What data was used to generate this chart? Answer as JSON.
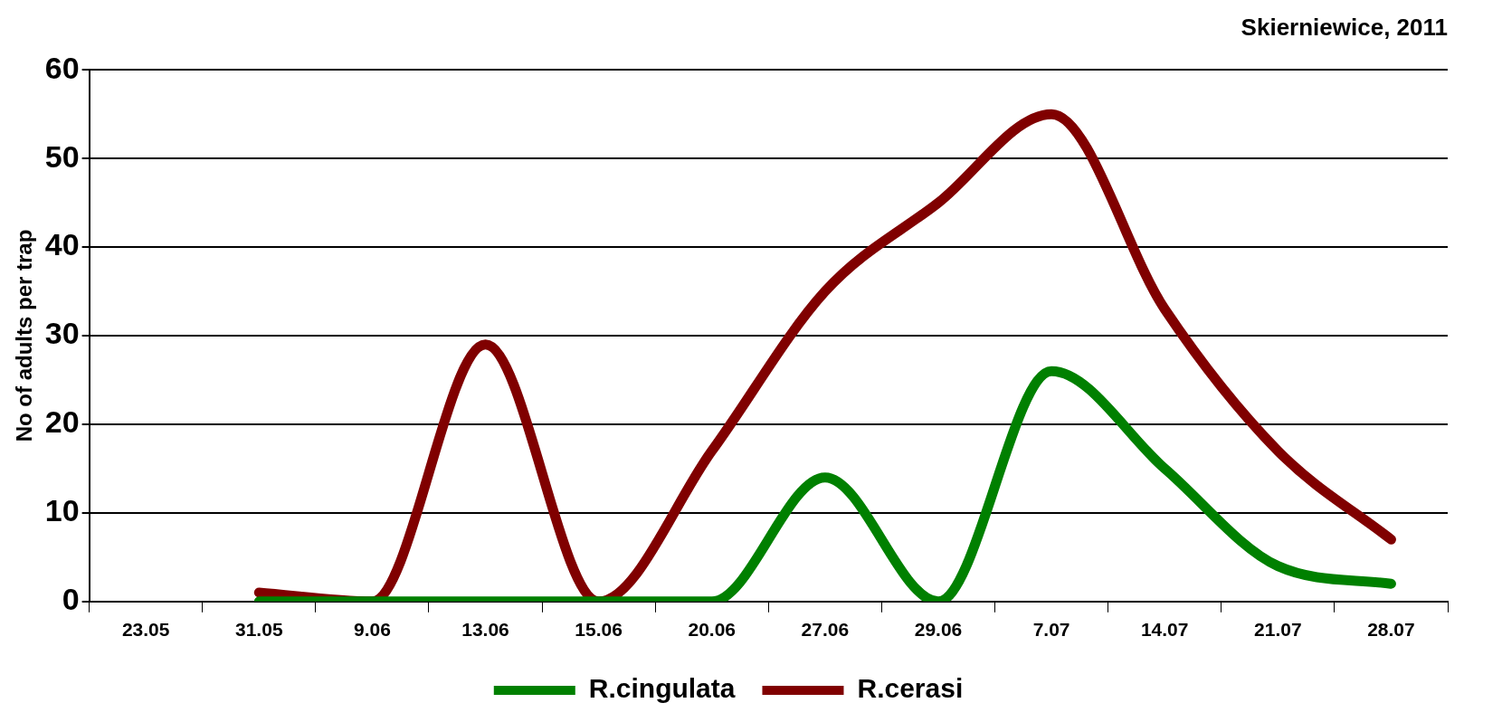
{
  "chart_data": {
    "type": "line",
    "title": "Skierniewice, 2011",
    "ylabel": "No of adults per trap",
    "categories": [
      "23.05",
      "31.05",
      "9.06",
      "13.06",
      "15.06",
      "20.06",
      "27.06",
      "29.06",
      "7.07",
      "14.07",
      "21.07",
      "28.07"
    ],
    "series": [
      {
        "name": "R.cingulata",
        "color": "#008000",
        "values": [
          null,
          0,
          0,
          0,
          0,
          0,
          14,
          0,
          26,
          15,
          4,
          2
        ]
      },
      {
        "name": "R.cerasi",
        "color": "#800000",
        "values": [
          null,
          1,
          0,
          29,
          0,
          17,
          35,
          45,
          55,
          33,
          17,
          7
        ]
      }
    ],
    "ylim": [
      0,
      60
    ],
    "yticks": [
      0,
      10,
      20,
      30,
      40,
      50,
      60
    ],
    "grid": "y",
    "legend": "bottom",
    "marker": "none",
    "line_style": "solid"
  }
}
